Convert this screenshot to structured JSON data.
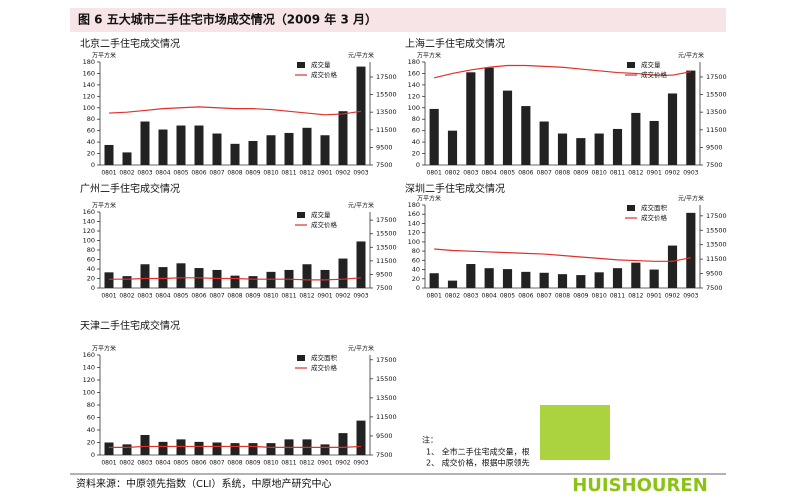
{
  "header": {
    "title": "图 6  五大城市二手住宅市场成交情况（2009 年 3 月）"
  },
  "chart_data": [
    {
      "type": "bar",
      "title": "北京二手住宅成交情况",
      "y_unit": "万平方米",
      "y2_unit": "元/平方米",
      "legend": "upper right",
      "categories": [
        "0801",
        "0802",
        "0803",
        "0804",
        "0805",
        "0806",
        "0807",
        "0808",
        "0809",
        "0810",
        "0811",
        "0812",
        "0901",
        "0902",
        "0903"
      ],
      "ylim": [
        0,
        180
      ],
      "yticks": [
        0,
        20,
        40,
        60,
        80,
        100,
        120,
        140,
        160,
        180
      ],
      "y2lim": [
        7500,
        19200
      ],
      "y2ticks": [
        7500,
        9500,
        11500,
        13500,
        15500,
        17500
      ],
      "series": [
        {
          "name": "成交量",
          "color": "#222222",
          "values": [
            35,
            22,
            76,
            62,
            69,
            69,
            55,
            37,
            42,
            52,
            56,
            65,
            52,
            94,
            172
          ]
        },
        {
          "name": "成交价格",
          "type": "line",
          "axis": "y2",
          "color": "#e0302a",
          "values": [
            13400,
            13500,
            13700,
            13900,
            14000,
            14100,
            14000,
            13900,
            13900,
            13800,
            13600,
            13400,
            13200,
            13300,
            13600
          ]
        }
      ]
    },
    {
      "type": "bar",
      "title": "上海二手住宅成交情况",
      "y_unit": "万平方米",
      "y2_unit": "元/平方米",
      "legend": "upper right",
      "categories": [
        "0801",
        "0802",
        "0803",
        "0804",
        "0805",
        "0806",
        "0807",
        "0808",
        "0809",
        "0810",
        "0811",
        "0812",
        "0901",
        "0902",
        "0903"
      ],
      "ylim": [
        0,
        180
      ],
      "yticks": [
        0,
        20,
        40,
        60,
        80,
        100,
        120,
        140,
        160,
        180
      ],
      "y2lim": [
        7500,
        19200
      ],
      "y2ticks": [
        7500,
        9500,
        11500,
        13500,
        15500,
        17500
      ],
      "series": [
        {
          "name": "成交量",
          "color": "#222222",
          "values": [
            98,
            60,
            162,
            170,
            130,
            103,
            76,
            55,
            47,
            55,
            63,
            91,
            77,
            125,
            165
          ]
        },
        {
          "name": "成交价格",
          "type": "line",
          "axis": "y2",
          "color": "#e0302a",
          "values": [
            17400,
            17900,
            18300,
            18600,
            18800,
            18800,
            18700,
            18600,
            18400,
            18200,
            18000,
            17900,
            17700,
            17700,
            18100
          ]
        }
      ]
    },
    {
      "type": "bar",
      "title": "广州二手住宅成交情况",
      "y_unit": "万平方米",
      "y2_unit": "元/平方米",
      "legend": "upper right",
      "categories": [
        "0801",
        "0802",
        "0803",
        "0804",
        "0805",
        "0806",
        "0807",
        "0808",
        "0809",
        "0810",
        "0811",
        "0812",
        "0901",
        "0902",
        "0903"
      ],
      "ylim": [
        0,
        160
      ],
      "yticks": [
        0,
        20,
        40,
        60,
        80,
        100,
        120,
        140,
        160
      ],
      "y2lim": [
        7500,
        18700
      ],
      "y2ticks": [
        7500,
        9500,
        11500,
        13500,
        15500,
        17500
      ],
      "series": [
        {
          "name": "成交量",
          "color": "#222222",
          "values": [
            33,
            25,
            50,
            44,
            52,
            42,
            38,
            26,
            25,
            34,
            38,
            50,
            38,
            62,
            98
          ]
        },
        {
          "name": "成交价格",
          "type": "line",
          "axis": "y2",
          "color": "#e0302a",
          "values": [
            8800,
            8800,
            8900,
            8900,
            9000,
            9000,
            8900,
            8900,
            8800,
            8800,
            8800,
            8700,
            8700,
            8800,
            9000
          ]
        }
      ]
    },
    {
      "type": "bar",
      "title": "深圳二手住宅成交情况",
      "y_unit": "万平方米",
      "y2_unit": "元/平方米",
      "legend": "upper right",
      "categories": [
        "0801",
        "0802",
        "0803",
        "0804",
        "0805",
        "0806",
        "0807",
        "0808",
        "0809",
        "0810",
        "0811",
        "0812",
        "0901",
        "0902",
        "0903"
      ],
      "ylim": [
        0,
        180
      ],
      "yticks": [
        0,
        20,
        40,
        60,
        80,
        100,
        120,
        140,
        160,
        180
      ],
      "y2lim": [
        7500,
        19000
      ],
      "y2ticks": [
        7500,
        9500,
        11500,
        13500,
        15500,
        17500
      ],
      "series": [
        {
          "name": "成交面积",
          "color": "#222222",
          "values": [
            32,
            16,
            52,
            43,
            41,
            35,
            33,
            30,
            28,
            34,
            43,
            55,
            40,
            92,
            163
          ]
        },
        {
          "name": "成交价格",
          "type": "line",
          "axis": "y2",
          "color": "#e0302a",
          "values": [
            12900,
            12700,
            12600,
            12500,
            12400,
            12300,
            12200,
            12000,
            11800,
            11600,
            11400,
            11300,
            11200,
            11200,
            11700
          ]
        }
      ]
    },
    {
      "type": "bar",
      "title": "天津二手住宅成交情况",
      "y_unit": "万平方米",
      "y2_unit": "元/平方米",
      "legend": "upper right",
      "categories": [
        "0801",
        "0802",
        "0803",
        "0804",
        "0805",
        "0806",
        "0807",
        "0808",
        "0809",
        "0810",
        "0811",
        "0812",
        "0901",
        "0902",
        "0903"
      ],
      "ylim": [
        0,
        160
      ],
      "yticks": [
        0,
        20,
        40,
        60,
        80,
        100,
        120,
        140,
        160
      ],
      "y2lim": [
        7500,
        18000
      ],
      "y2ticks": [
        7500,
        9500,
        11500,
        13500,
        15500,
        17500
      ],
      "series": [
        {
          "name": "成交面积",
          "color": "#222222",
          "values": [
            20,
            17,
            32,
            21,
            25,
            21,
            20,
            19,
            19,
            19,
            25,
            25,
            17,
            35,
            55
          ]
        },
        {
          "name": "成交价格",
          "type": "line",
          "axis": "y2",
          "color": "#e0302a",
          "values": [
            8300,
            8300,
            8400,
            8400,
            8400,
            8400,
            8400,
            8400,
            8400,
            8300,
            8300,
            8300,
            8300,
            8300,
            8400
          ]
        }
      ]
    }
  ],
  "note": {
    "label": "注：",
    "items": [
      "1、   全市二手住宅成交量，根",
      "2、   成交价格，根据中原领先"
    ]
  },
  "source": "资料来源：中原领先指数（CLI）系统，中原地产研究中心",
  "watermark": "HUISHOUREN"
}
